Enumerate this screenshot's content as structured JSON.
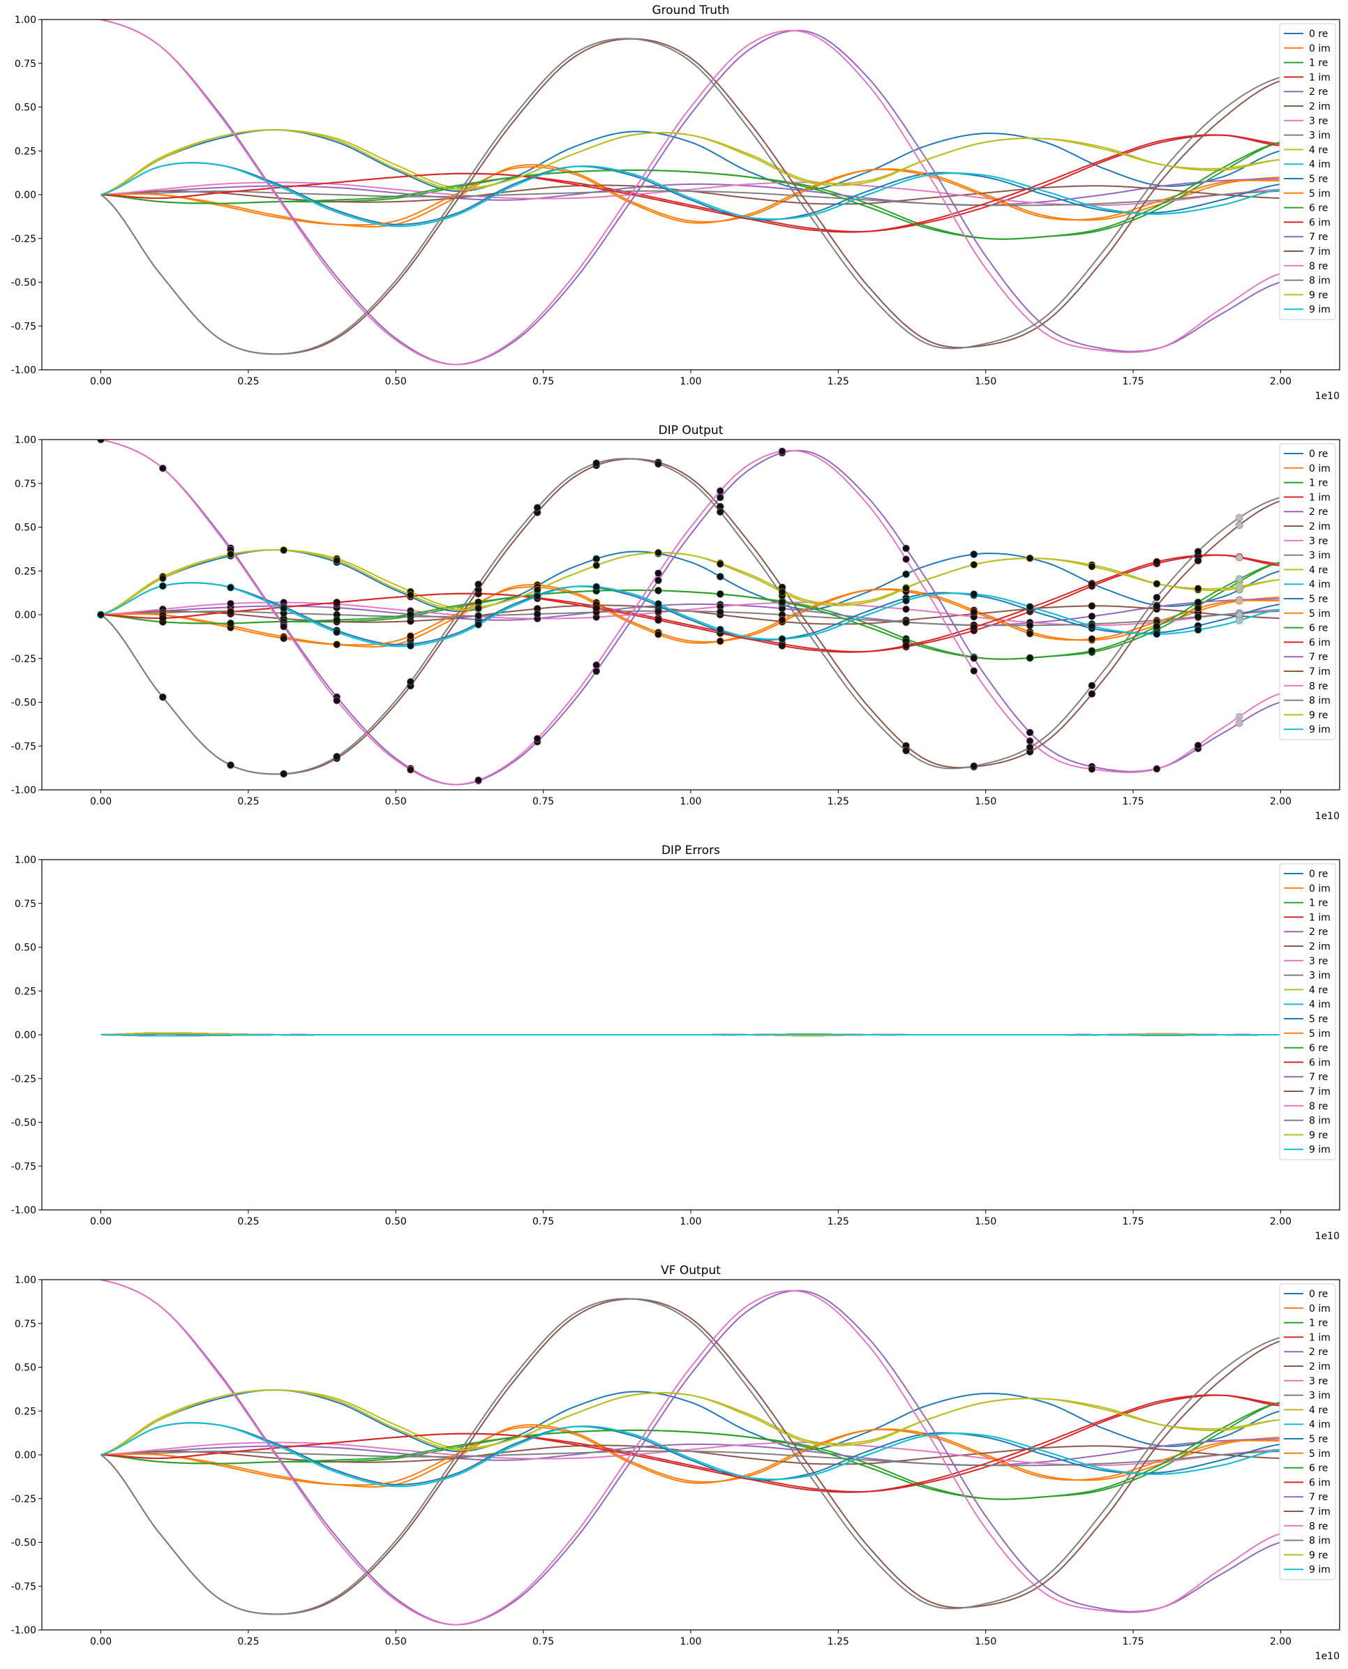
{
  "palette": [
    "#1f77b4",
    "#ff7f0e",
    "#2ca02c",
    "#d62728",
    "#9467bd",
    "#8c564b",
    "#e377c2",
    "#7f7f7f",
    "#bcbd22",
    "#17becf"
  ],
  "chart_data": [
    {
      "type": "line",
      "title": "Ground Truth",
      "xlabel": "",
      "ylabel": "",
      "x_offset_text": "1e10",
      "xlim": [
        -0.1,
        2.1
      ],
      "ylim": [
        -1.0,
        1.0
      ],
      "xticks": [
        "0.00",
        "0.25",
        "0.50",
        "0.75",
        "1.00",
        "1.25",
        "1.50",
        "1.75",
        "2.00"
      ],
      "yticks": [
        "-1.00",
        "-0.75",
        "-0.50",
        "-0.25",
        "0.00",
        "0.25",
        "0.50",
        "0.75",
        "1.00"
      ],
      "grid": false,
      "legend": "upper-right",
      "series_source": "curves",
      "markers": false,
      "x": [
        0.0,
        0.1,
        0.2,
        0.3,
        0.4,
        0.5,
        0.6,
        0.7,
        0.8,
        0.9,
        1.0,
        1.1,
        1.2,
        1.3,
        1.4,
        1.5,
        1.6,
        1.7,
        1.8,
        1.9,
        2.0
      ],
      "series": [
        {
          "name": "0 re",
          "values": [
            0.0,
            0.2,
            0.32,
            0.37,
            0.3,
            0.14,
            0.02,
            0.1,
            0.27,
            0.36,
            0.3,
            0.13,
            0.03,
            0.13,
            0.28,
            0.35,
            0.3,
            0.15,
            0.05,
            0.1,
            0.25
          ]
        },
        {
          "name": "0 im",
          "values": [
            0.0,
            0.0,
            -0.05,
            -0.12,
            -0.17,
            -0.17,
            -0.02,
            0.16,
            0.13,
            -0.04,
            -0.15,
            -0.12,
            0.03,
            0.14,
            0.12,
            0.0,
            -0.12,
            -0.14,
            -0.05,
            0.06,
            0.1
          ]
        },
        {
          "name": "1 re",
          "values": [
            0.0,
            -0.04,
            -0.05,
            -0.04,
            -0.04,
            -0.02,
            0.04,
            0.1,
            0.13,
            0.14,
            0.13,
            0.1,
            0.05,
            -0.05,
            -0.18,
            -0.25,
            -0.24,
            -0.2,
            -0.07,
            0.13,
            0.3
          ]
        },
        {
          "name": "1 im",
          "values": [
            0.0,
            -0.02,
            0.01,
            0.04,
            0.07,
            0.1,
            0.12,
            0.11,
            0.07,
            0.01,
            -0.06,
            -0.13,
            -0.19,
            -0.21,
            -0.16,
            -0.07,
            0.05,
            0.19,
            0.3,
            0.34,
            0.29
          ]
        },
        {
          "name": "2 re",
          "values": [
            0.0,
            0.02,
            0.04,
            0.05,
            0.04,
            0.01,
            -0.02,
            -0.03,
            0.0,
            0.04,
            0.06,
            0.05,
            0.02,
            -0.02,
            -0.05,
            -0.06,
            -0.04,
            0.0,
            0.05,
            0.08,
            0.09
          ]
        },
        {
          "name": "2 im",
          "values": [
            0.0,
            0.02,
            0.01,
            -0.02,
            -0.04,
            -0.04,
            -0.02,
            0.02,
            0.05,
            0.05,
            0.02,
            -0.02,
            -0.05,
            -0.05,
            -0.02,
            0.01,
            0.04,
            0.05,
            0.03,
            0.0,
            -0.02
          ]
        },
        {
          "name": "3 re",
          "values": [
            0.0,
            0.03,
            0.06,
            0.07,
            0.06,
            0.03,
            0.0,
            -0.02,
            -0.02,
            0.0,
            0.03,
            0.06,
            0.07,
            0.05,
            0.02,
            -0.02,
            -0.05,
            -0.06,
            -0.04,
            0.0,
            0.03
          ]
        },
        {
          "name": "3 im",
          "values": [
            0.0,
            0.01,
            0.02,
            0.01,
            0.0,
            -0.01,
            -0.01,
            0.0,
            0.01,
            0.02,
            0.02,
            0.01,
            -0.01,
            -0.03,
            -0.05,
            -0.06,
            -0.06,
            -0.05,
            -0.03,
            0.0,
            0.02
          ]
        },
        {
          "name": "4 re",
          "values": [
            0.0,
            0.21,
            0.33,
            0.37,
            0.32,
            0.17,
            0.04,
            0.09,
            0.23,
            0.34,
            0.34,
            0.23,
            0.08,
            0.08,
            0.2,
            0.3,
            0.32,
            0.27,
            0.17,
            0.14,
            0.2
          ]
        },
        {
          "name": "4 im",
          "values": [
            0.0,
            0.16,
            0.17,
            0.05,
            -0.1,
            -0.18,
            -0.12,
            0.05,
            0.16,
            0.12,
            -0.02,
            -0.13,
            -0.12,
            0.0,
            0.11,
            0.11,
            0.02,
            -0.08,
            -0.11,
            -0.06,
            0.03
          ]
        },
        {
          "name": "5 re",
          "values": [
            0.0,
            0.16,
            0.17,
            0.06,
            -0.09,
            -0.17,
            -0.11,
            0.06,
            0.16,
            0.11,
            -0.03,
            -0.14,
            -0.11,
            0.02,
            0.12,
            0.1,
            0.0,
            -0.09,
            -0.1,
            -0.03,
            0.06
          ]
        },
        {
          "name": "5 im",
          "values": [
            0.0,
            0.0,
            -0.06,
            -0.13,
            -0.17,
            -0.15,
            0.0,
            0.15,
            0.12,
            -0.05,
            -0.16,
            -0.11,
            0.04,
            0.14,
            0.11,
            -0.01,
            -0.13,
            -0.13,
            -0.03,
            0.07,
            0.08
          ]
        },
        {
          "name": "6 re",
          "values": [
            0.0,
            -0.04,
            -0.05,
            -0.04,
            -0.03,
            -0.01,
            0.05,
            0.1,
            0.13,
            0.14,
            0.13,
            0.1,
            0.04,
            -0.07,
            -0.19,
            -0.25,
            -0.24,
            -0.19,
            -0.05,
            0.15,
            0.3
          ]
        },
        {
          "name": "6 im",
          "values": [
            0.0,
            -0.02,
            0.01,
            0.04,
            0.07,
            0.1,
            0.12,
            0.11,
            0.06,
            0.0,
            -0.07,
            -0.14,
            -0.2,
            -0.21,
            -0.15,
            -0.05,
            0.07,
            0.2,
            0.31,
            0.34,
            0.28
          ]
        },
        {
          "name": "7 re",
          "values": [
            1.0,
            0.85,
            0.47,
            -0.01,
            -0.47,
            -0.82,
            -0.97,
            -0.84,
            -0.5,
            -0.03,
            0.46,
            0.83,
            0.93,
            0.67,
            0.2,
            -0.35,
            -0.75,
            -0.88,
            -0.87,
            -0.68,
            -0.5
          ]
        },
        {
          "name": "7 im",
          "values": [
            0.0,
            -0.45,
            -0.82,
            -0.91,
            -0.82,
            -0.51,
            -0.05,
            0.42,
            0.78,
            0.89,
            0.78,
            0.41,
            -0.06,
            -0.52,
            -0.83,
            -0.86,
            -0.73,
            -0.37,
            0.09,
            0.43,
            0.65
          ]
        },
        {
          "name": "8 re",
          "values": [
            1.0,
            0.85,
            0.46,
            -0.02,
            -0.49,
            -0.83,
            -0.97,
            -0.83,
            -0.47,
            0.01,
            0.5,
            0.86,
            0.92,
            0.63,
            0.13,
            -0.42,
            -0.79,
            -0.89,
            -0.87,
            -0.65,
            -0.45
          ]
        },
        {
          "name": "8 im",
          "values": [
            0.0,
            -0.45,
            -0.82,
            -0.91,
            -0.81,
            -0.49,
            -0.02,
            0.45,
            0.8,
            0.89,
            0.76,
            0.37,
            -0.11,
            -0.56,
            -0.85,
            -0.85,
            -0.7,
            -0.32,
            0.14,
            0.48,
            0.67
          ]
        },
        {
          "name": "9 re",
          "values": [
            0.0,
            0.2,
            0.33,
            0.37,
            0.31,
            0.15,
            0.03,
            0.09,
            0.23,
            0.34,
            0.34,
            0.22,
            0.07,
            0.07,
            0.2,
            0.3,
            0.32,
            0.26,
            0.17,
            0.15,
            0.2
          ]
        },
        {
          "name": "9 im",
          "values": [
            0.0,
            0.16,
            0.17,
            0.05,
            -0.1,
            -0.18,
            -0.12,
            0.05,
            0.16,
            0.12,
            -0.02,
            -0.13,
            -0.12,
            0.0,
            0.11,
            0.11,
            0.02,
            -0.08,
            -0.11,
            -0.06,
            0.03
          ]
        }
      ]
    },
    {
      "type": "line",
      "title": "DIP Output",
      "xlabel": "",
      "ylabel": "",
      "x_offset_text": "1e10",
      "xlim": [
        -0.1,
        2.1
      ],
      "ylim": [
        -1.0,
        1.0
      ],
      "xticks": [
        "0.00",
        "0.25",
        "0.50",
        "0.75",
        "1.00",
        "1.25",
        "1.50",
        "1.75",
        "2.00"
      ],
      "yticks": [
        "-1.00",
        "-0.75",
        "-0.50",
        "-0.25",
        "0.00",
        "0.25",
        "0.50",
        "0.75",
        "1.00"
      ],
      "grid": false,
      "legend": "upper-right",
      "series_source": "same-as-ground-truth",
      "markers": true,
      "marker_x": [
        0.0,
        0.105,
        0.22,
        0.31,
        0.4,
        0.525,
        0.64,
        0.74,
        0.84,
        0.945,
        1.05,
        1.155,
        1.365,
        1.48,
        1.575,
        1.68,
        1.79,
        1.86,
        1.93
      ],
      "note_ground_truth_samples": "black dots sampled from each series at marker_x"
    },
    {
      "type": "line",
      "title": "DIP Errors",
      "xlabel": "",
      "ylabel": "",
      "x_offset_text": "1e10",
      "xlim": [
        -0.1,
        2.1
      ],
      "ylim": [
        -1.0,
        1.0
      ],
      "xticks": [
        "0.00",
        "0.25",
        "0.50",
        "0.75",
        "1.00",
        "1.25",
        "1.50",
        "1.75",
        "2.00"
      ],
      "yticks": [
        "-1.00",
        "-0.75",
        "-0.50",
        "-0.25",
        "0.00",
        "0.25",
        "0.50",
        "0.75",
        "1.00"
      ],
      "grid": false,
      "legend": "upper-right",
      "series_source": "errors",
      "markers": false,
      "x": [
        0.0,
        0.1,
        0.2,
        0.3,
        0.4,
        0.5,
        0.6,
        0.7,
        0.8,
        0.9,
        1.0,
        1.1,
        1.2,
        1.3,
        1.4,
        1.5,
        1.6,
        1.7,
        1.8,
        1.9,
        2.0
      ],
      "error_values": [
        0.0,
        0.01,
        0.005,
        0.0,
        0.0,
        0.0,
        0.0,
        0.0,
        0.0,
        0.0,
        0.0,
        0.0,
        -0.005,
        0.0,
        0.0,
        0.0,
        0.0,
        0.0,
        0.005,
        0.0,
        0.0
      ]
    },
    {
      "type": "line",
      "title": "VF Output",
      "xlabel": "",
      "ylabel": "",
      "x_offset_text": "1e10",
      "xlim": [
        -0.1,
        2.1
      ],
      "ylim": [
        -1.0,
        1.0
      ],
      "xticks": [
        "0.00",
        "0.25",
        "0.50",
        "0.75",
        "1.00",
        "1.25",
        "1.50",
        "1.75",
        "2.00"
      ],
      "yticks": [
        "-1.00",
        "-0.75",
        "-0.50",
        "-0.25",
        "0.00",
        "0.25",
        "0.50",
        "0.75",
        "1.00"
      ],
      "grid": false,
      "legend": "upper-right",
      "series_source": "same-as-ground-truth",
      "markers": false
    }
  ]
}
